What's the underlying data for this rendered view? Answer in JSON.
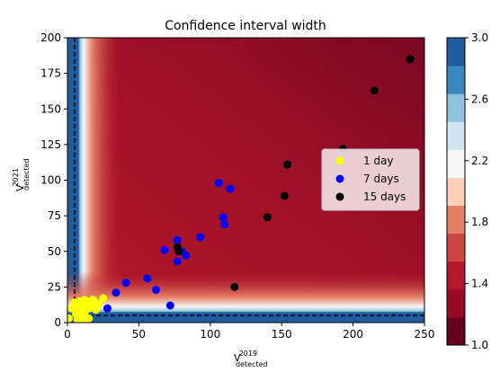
{
  "chart_data": {
    "type": "scatter",
    "title": "Confidence interval width",
    "xlabel": {
      "base": "V",
      "sup": "2019",
      "sub": "detected"
    },
    "ylabel": {
      "base": "V",
      "sup": "2021",
      "sub": "detected"
    },
    "xlim": [
      0,
      250
    ],
    "ylim": [
      0,
      200
    ],
    "xticks": [
      0,
      50,
      100,
      150,
      200,
      250
    ],
    "yticks": [
      0,
      25,
      50,
      75,
      100,
      125,
      150,
      175,
      200
    ],
    "threshold_lines": {
      "x": 5,
      "y": 5,
      "style": "dashed",
      "color": "#000000"
    },
    "heatmap": {
      "description_colors": "deep red far from axes, lighter near the threshold lines, blue at the axes",
      "base_color": "#b2182b",
      "far_color": "#8b0a24"
    },
    "colorbar": {
      "min": 1.0,
      "max": 3.0,
      "ticks": [
        1.0,
        1.4,
        1.8,
        2.2,
        2.6,
        3.0
      ],
      "bands": [
        "#67001f",
        "#950b26",
        "#b2182b",
        "#ca4741",
        "#e48066",
        "#fbd0b9",
        "#f7f7f7",
        "#d1e5f0",
        "#8ec4de",
        "#3a87c0",
        "#1f5d9e"
      ]
    },
    "legend": {
      "placement": "center-right"
    },
    "series": [
      {
        "name": "1 day",
        "color": "#ffff00",
        "x": [
          1,
          3,
          5,
          6,
          7,
          8,
          9,
          10,
          10,
          11,
          12,
          12,
          13,
          14,
          15,
          15,
          16,
          17,
          18,
          20,
          22,
          25,
          12,
          8
        ],
        "y": [
          3,
          10,
          14,
          6,
          2,
          12,
          15,
          9,
          4,
          13,
          16,
          7,
          11,
          14,
          10,
          3,
          15,
          12,
          16,
          9,
          13,
          17,
          1,
          5
        ]
      },
      {
        "name": "7 days",
        "color": "#0000ff",
        "x": [
          28,
          34,
          41,
          56,
          62,
          68,
          72,
          77,
          77,
          80,
          83,
          93,
          106,
          109,
          110,
          114
        ],
        "y": [
          10,
          21,
          28,
          31,
          23,
          51,
          12,
          58,
          43,
          50,
          47,
          60,
          98,
          74,
          69,
          94
        ],
        "names": []
      },
      {
        "name": "15 days",
        "color": "#000000",
        "x": [
          77,
          78,
          117,
          140,
          152,
          154,
          193,
          215,
          240
        ],
        "y": [
          53,
          50,
          25,
          74,
          89,
          111,
          122,
          163,
          185
        ]
      }
    ]
  }
}
